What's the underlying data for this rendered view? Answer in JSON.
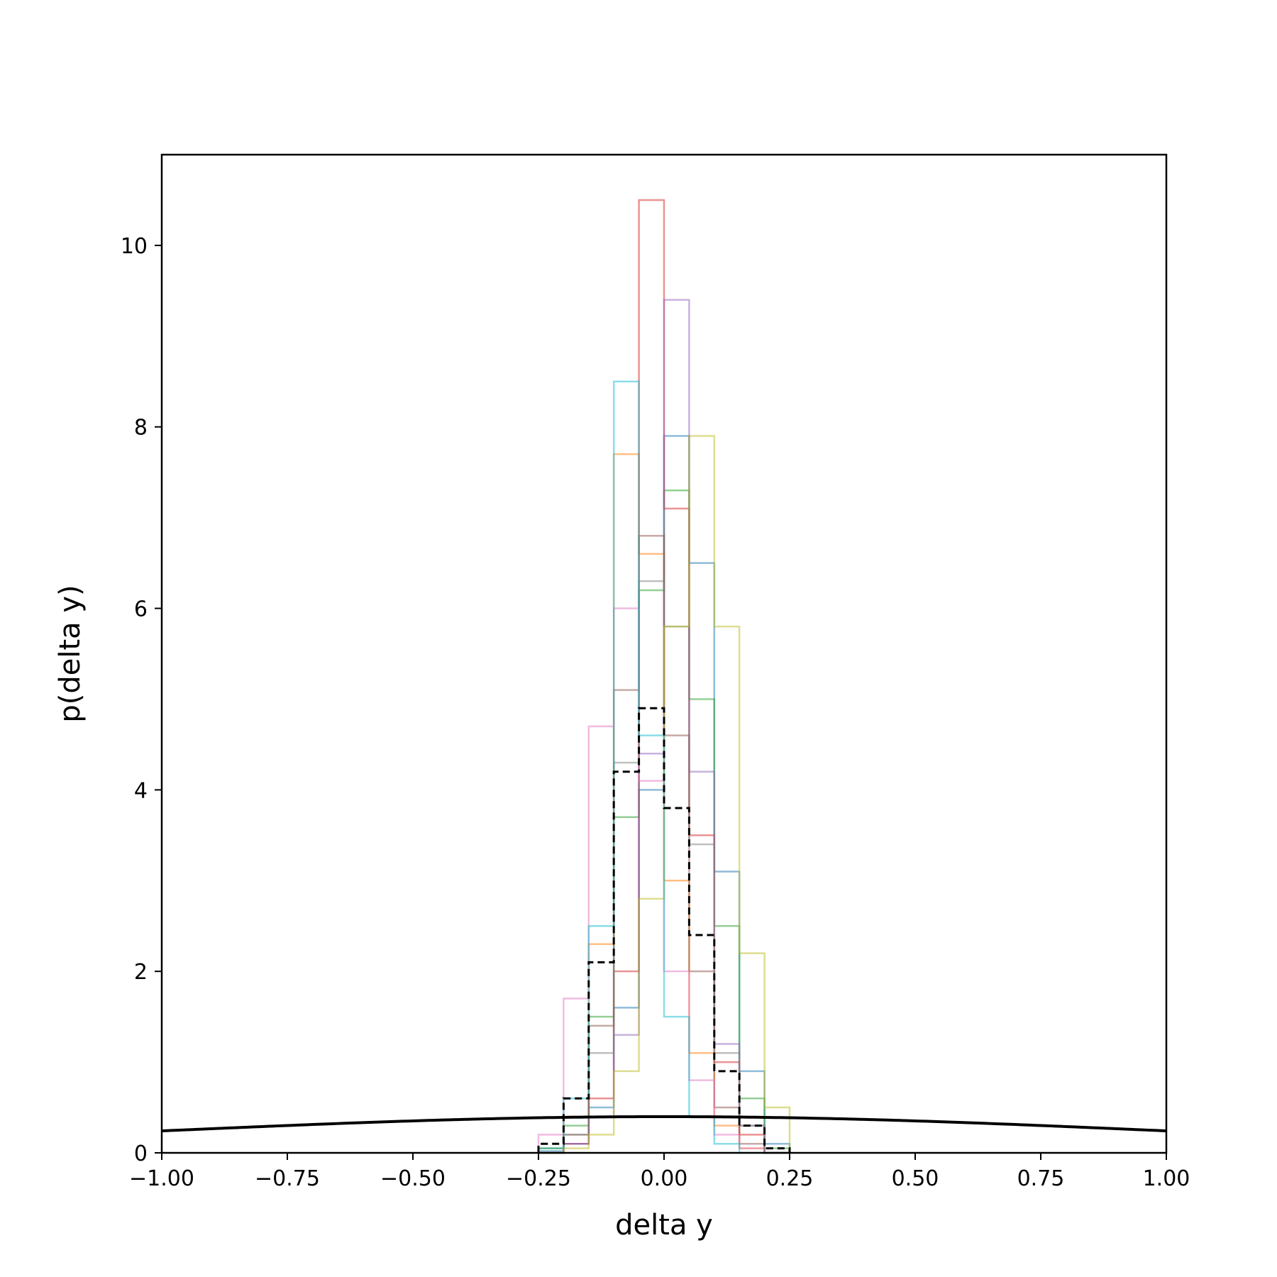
{
  "chart_data": {
    "type": "line",
    "title": "",
    "xlabel": "delta y",
    "ylabel": "p(delta y)",
    "xlim": [
      -1.0,
      1.0
    ],
    "ylim": [
      0,
      11
    ],
    "x_ticks": [
      "−1.00",
      "−0.75",
      "−0.50",
      "−0.25",
      "0.00",
      "0.25",
      "0.50",
      "0.75",
      "1.00"
    ],
    "x_tick_values": [
      -1.0,
      -0.75,
      -0.5,
      -0.25,
      0.0,
      0.25,
      0.5,
      0.75,
      1.0
    ],
    "y_ticks": [
      "0",
      "2",
      "4",
      "6",
      "8",
      "10"
    ],
    "y_tick_values": [
      0,
      2,
      4,
      6,
      8,
      10
    ],
    "grid": false,
    "histograms": [
      {
        "color": "#1f77b4",
        "centers": [
          -0.225,
          -0.175,
          -0.125,
          -0.075,
          -0.025,
          0.025,
          0.075,
          0.125,
          0.175,
          0.225
        ],
        "heights": [
          0.02,
          0.1,
          0.5,
          1.6,
          4.0,
          7.9,
          6.5,
          3.1,
          0.9,
          0.1
        ]
      },
      {
        "color": "#ff7f0e",
        "centers": [
          -0.225,
          -0.175,
          -0.125,
          -0.075,
          -0.025,
          0.025,
          0.075,
          0.125,
          0.175,
          0.225
        ],
        "heights": [
          0.05,
          0.4,
          2.3,
          7.7,
          6.6,
          3.0,
          1.1,
          0.3,
          0.05,
          0.0
        ]
      },
      {
        "color": "#2ca02c",
        "centers": [
          -0.225,
          -0.175,
          -0.125,
          -0.075,
          -0.025,
          0.025,
          0.075,
          0.125,
          0.175,
          0.225
        ],
        "heights": [
          0.05,
          0.3,
          1.5,
          3.7,
          6.2,
          7.3,
          5.0,
          2.5,
          0.6,
          0.05
        ]
      },
      {
        "color": "#d62728",
        "centers": [
          -0.225,
          -0.175,
          -0.125,
          -0.075,
          -0.025,
          0.025,
          0.075,
          0.125,
          0.175,
          0.225
        ],
        "heights": [
          0.0,
          0.1,
          0.6,
          2.0,
          10.5,
          7.1,
          3.5,
          1.0,
          0.2,
          0.0
        ]
      },
      {
        "color": "#9467bd",
        "centers": [
          -0.225,
          -0.175,
          -0.125,
          -0.075,
          -0.025,
          0.025,
          0.075,
          0.125,
          0.175,
          0.225
        ],
        "heights": [
          0.0,
          0.1,
          0.4,
          1.3,
          4.4,
          9.4,
          4.2,
          1.2,
          0.3,
          0.0
        ]
      },
      {
        "color": "#8c564b",
        "centers": [
          -0.225,
          -0.175,
          -0.125,
          -0.075,
          -0.025,
          0.025,
          0.075,
          0.125,
          0.175,
          0.225
        ],
        "heights": [
          0.0,
          0.2,
          1.4,
          5.1,
          6.8,
          4.6,
          2.0,
          0.5,
          0.1,
          0.0
        ]
      },
      {
        "color": "#e377c2",
        "centers": [
          -0.225,
          -0.175,
          -0.125,
          -0.075,
          -0.025,
          0.025,
          0.075,
          0.125,
          0.175,
          0.225
        ],
        "heights": [
          0.2,
          1.7,
          4.7,
          6.0,
          4.1,
          2.0,
          0.8,
          0.2,
          0.05,
          0.0
        ]
      },
      {
        "color": "#7f7f7f",
        "centers": [
          -0.225,
          -0.175,
          -0.125,
          -0.075,
          -0.025,
          0.025,
          0.075,
          0.125,
          0.175,
          0.225
        ],
        "heights": [
          0.0,
          0.2,
          1.1,
          4.3,
          6.3,
          5.8,
          3.4,
          1.1,
          0.3,
          0.0
        ]
      },
      {
        "color": "#bcbd22",
        "centers": [
          -0.225,
          -0.175,
          -0.125,
          -0.075,
          -0.025,
          0.025,
          0.075,
          0.125,
          0.175,
          0.225
        ],
        "heights": [
          0.0,
          0.05,
          0.2,
          0.9,
          2.8,
          5.8,
          7.9,
          5.8,
          2.2,
          0.5
        ]
      },
      {
        "color": "#17becf",
        "centers": [
          -0.225,
          -0.175,
          -0.125,
          -0.075,
          -0.025,
          0.025,
          0.075,
          0.125,
          0.175,
          0.225
        ],
        "heights": [
          0.05,
          0.6,
          2.5,
          8.5,
          4.6,
          1.5,
          0.4,
          0.1,
          0.0,
          0.0
        ]
      },
      {
        "color": "#000000",
        "dashed": true,
        "centers": [
          -0.225,
          -0.175,
          -0.125,
          -0.075,
          -0.025,
          0.025,
          0.075,
          0.125,
          0.175,
          0.225
        ],
        "heights": [
          0.1,
          0.6,
          2.1,
          4.2,
          4.9,
          3.8,
          2.4,
          0.9,
          0.3,
          0.05
        ]
      }
    ],
    "curve": {
      "type": "normal_pdf",
      "mean": 0.0,
      "std": 1.0,
      "color": "#000000"
    }
  }
}
